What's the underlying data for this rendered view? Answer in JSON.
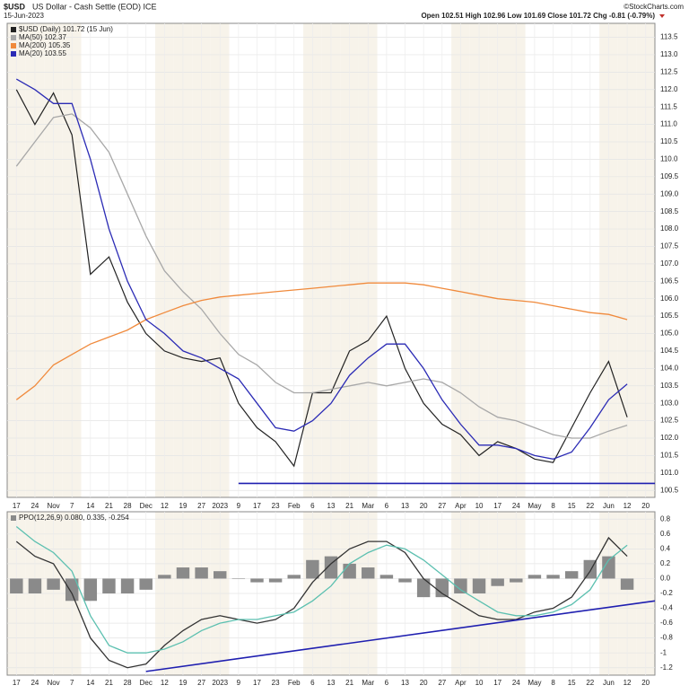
{
  "chart_data": [
    {
      "type": "line",
      "symbol": "$USD",
      "title": "US Dollar - Cash Settle (EOD) ICE",
      "date": "15-Jun-2023",
      "quote": "Open 102.51 High 102.96 Low 101.69 Close 101.72 Chg -0.81 (-0.79%)",
      "credit": "©StockCharts.com",
      "categories": [
        "17",
        "24",
        "Nov",
        "7",
        "14",
        "21",
        "28",
        "Dec",
        "12",
        "19",
        "27",
        "2023",
        "9",
        "17",
        "23",
        "Feb",
        "6",
        "13",
        "21",
        "Mar",
        "6",
        "13",
        "20",
        "27",
        "Apr",
        "10",
        "17",
        "24",
        "May",
        "8",
        "15",
        "22",
        "Jun",
        "12",
        "20"
      ],
      "series": [
        {
          "name": "$USD (Daily) 101.72 (15 Jun)",
          "color": "#222222",
          "values": [
            112.0,
            111.0,
            111.9,
            110.7,
            106.7,
            107.2,
            105.9,
            105.0,
            104.5,
            104.3,
            104.2,
            104.3,
            103.0,
            102.3,
            101.9,
            101.2,
            103.3,
            103.3,
            104.5,
            104.8,
            105.5,
            104.0,
            103.0,
            102.4,
            102.1,
            101.5,
            101.9,
            101.7,
            101.4,
            101.3,
            102.3,
            103.3,
            104.2,
            102.6,
            null
          ]
        },
        {
          "name": "MA(50) 102.37",
          "color": "#a8a8a8",
          "values": [
            109.8,
            110.5,
            111.2,
            111.3,
            110.9,
            110.2,
            109.0,
            107.8,
            106.8,
            106.2,
            105.7,
            105.0,
            104.4,
            104.1,
            103.6,
            103.3,
            103.3,
            103.4,
            103.5,
            103.6,
            103.5,
            103.6,
            103.7,
            103.6,
            103.3,
            102.9,
            102.6,
            102.5,
            102.3,
            102.1,
            102.0,
            102.0,
            102.2,
            102.37,
            null
          ]
        },
        {
          "name": "MA(200) 105.35",
          "color": "#f08a3c",
          "values": [
            103.1,
            103.5,
            104.1,
            104.4,
            104.7,
            104.9,
            105.1,
            105.4,
            105.6,
            105.8,
            105.95,
            106.05,
            106.1,
            106.15,
            106.2,
            106.25,
            106.3,
            106.35,
            106.4,
            106.45,
            106.45,
            106.45,
            106.4,
            106.3,
            106.2,
            106.1,
            106.0,
            105.95,
            105.9,
            105.8,
            105.7,
            105.6,
            105.55,
            105.4,
            null
          ]
        },
        {
          "name": "MA(20) 103.55",
          "color": "#2b2bb5",
          "values": [
            112.3,
            112.0,
            111.6,
            111.6,
            110.0,
            108.0,
            106.5,
            105.4,
            105.0,
            104.5,
            104.3,
            104.0,
            103.7,
            103.0,
            102.3,
            102.2,
            102.5,
            103.0,
            103.8,
            104.3,
            104.7,
            104.7,
            104.0,
            103.1,
            102.4,
            101.8,
            101.8,
            101.7,
            101.5,
            101.4,
            101.6,
            102.3,
            103.1,
            103.55,
            null
          ]
        }
      ],
      "support": 100.7,
      "ylim": [
        100.3,
        113.9
      ],
      "yticks": [
        {
          "value": 100.5,
          "label": "100.5"
        },
        {
          "value": 101,
          "label": "101.0"
        },
        {
          "value": 101.5,
          "label": "101.5"
        },
        {
          "value": 102,
          "label": "102.0"
        },
        {
          "value": 102.5,
          "label": "102.5"
        },
        {
          "value": 103,
          "label": "103.0"
        },
        {
          "value": 103.5,
          "label": "103.5"
        },
        {
          "value": 104,
          "label": "104.0"
        },
        {
          "value": 104.5,
          "label": "104.5"
        },
        {
          "value": 105,
          "label": "105.0"
        },
        {
          "value": 105.5,
          "label": "105.5"
        },
        {
          "value": 106,
          "label": "106.0"
        },
        {
          "value": 106.5,
          "label": "106.5"
        },
        {
          "value": 107,
          "label": "107.0"
        },
        {
          "value": 107.5,
          "label": "107.5"
        },
        {
          "value": 108,
          "label": "108.0"
        },
        {
          "value": 108.5,
          "label": "108.5"
        },
        {
          "value": 109,
          "label": "109.0"
        },
        {
          "value": 109.5,
          "label": "109.5"
        },
        {
          "value": 110,
          "label": "110.0"
        },
        {
          "value": 110.5,
          "label": "110.5"
        },
        {
          "value": 111,
          "label": "111.0"
        },
        {
          "value": 111.5,
          "label": "111.5"
        },
        {
          "value": 112,
          "label": "112.0"
        },
        {
          "value": 112.5,
          "label": "112.5"
        },
        {
          "value": 113,
          "label": "113.0"
        },
        {
          "value": 113.5,
          "label": "113.5"
        }
      ],
      "grid": true
    },
    {
      "type": "line",
      "categories": [
        "17",
        "24",
        "Nov",
        "7",
        "14",
        "21",
        "28",
        "Dec",
        "12",
        "19",
        "27",
        "2023",
        "9",
        "17",
        "23",
        "Feb",
        "6",
        "13",
        "21",
        "Mar",
        "6",
        "13",
        "20",
        "27",
        "Apr",
        "10",
        "17",
        "24",
        "May",
        "8",
        "15",
        "22",
        "Jun",
        "12",
        "20"
      ],
      "series": [
        {
          "name": "PPO(12,26,9) 0.080, 0.335, -0.254",
          "type": "bar",
          "color": "#8a8a8a",
          "values": [
            -0.2,
            -0.2,
            -0.15,
            -0.3,
            -0.3,
            -0.2,
            -0.2,
            -0.15,
            0.05,
            0.15,
            0.15,
            0.1,
            0,
            -0.05,
            -0.05,
            0.05,
            0.25,
            0.3,
            0.2,
            0.15,
            0.05,
            -0.05,
            -0.25,
            -0.25,
            -0.2,
            -0.2,
            -0.1,
            -0.05,
            0.05,
            0.05,
            0.1,
            0.25,
            0.3,
            -0.15,
            null
          ]
        },
        {
          "type": "line",
          "color": "#333333",
          "values": [
            0.5,
            0.3,
            0.2,
            -0.2,
            -0.8,
            -1.1,
            -1.2,
            -1.15,
            -0.9,
            -0.7,
            -0.55,
            -0.5,
            -0.55,
            -0.6,
            -0.55,
            -0.4,
            -0.05,
            0.2,
            0.4,
            0.5,
            0.5,
            0.35,
            0.0,
            -0.2,
            -0.35,
            -0.5,
            -0.55,
            -0.55,
            -0.45,
            -0.4,
            -0.25,
            0.1,
            0.55,
            0.3,
            null
          ]
        },
        {
          "type": "line",
          "color": "#5cc0b0",
          "values": [
            0.7,
            0.5,
            0.35,
            0.1,
            -0.5,
            -0.9,
            -1.0,
            -1.0,
            -0.95,
            -0.85,
            -0.7,
            -0.6,
            -0.55,
            -0.55,
            -0.5,
            -0.45,
            -0.3,
            -0.1,
            0.2,
            0.35,
            0.45,
            0.4,
            0.25,
            0.05,
            -0.15,
            -0.3,
            -0.45,
            -0.5,
            -0.5,
            -0.45,
            -0.35,
            -0.15,
            0.25,
            0.45,
            null
          ]
        }
      ],
      "trendline": [
        -1.25,
        -0.3
      ],
      "ylim": [
        -1.3,
        0.9
      ],
      "yticks": [
        -1.2,
        -1,
        -0.8,
        -0.6,
        -0.4,
        -0.2,
        {
          "value": 0,
          "label": "0.0"
        },
        0.2,
        0.4,
        0.6,
        0.8
      ],
      "grid": true
    }
  ]
}
